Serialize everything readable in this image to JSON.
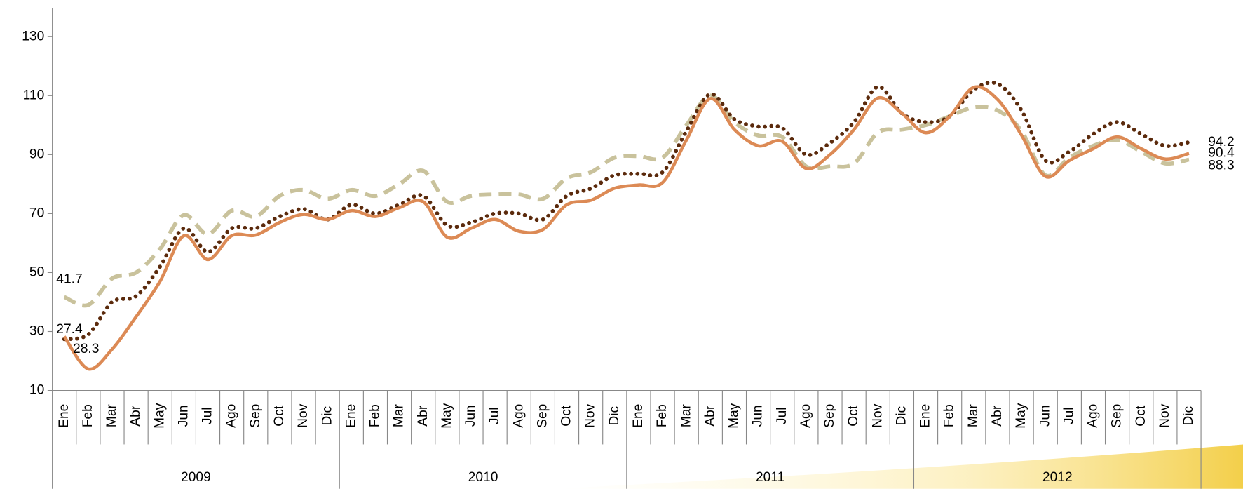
{
  "chart_data": {
    "type": "line",
    "categories": [
      "Ene",
      "Feb",
      "Mar",
      "Abr",
      "May",
      "Jun",
      "Jul",
      "Ago",
      "Sep",
      "Oct",
      "Nov",
      "Dic",
      "Ene",
      "Feb",
      "Mar",
      "Abr",
      "May",
      "Jun",
      "Jul",
      "Ago",
      "Sep",
      "Oct",
      "Nov",
      "Dic",
      "Ene",
      "Feb",
      "Mar",
      "Abr",
      "May",
      "Jun",
      "Jul",
      "Ago",
      "Sep",
      "Oct",
      "Nov",
      "Dic",
      "Ene",
      "Feb",
      "Mar",
      "Abr",
      "May",
      "Jun",
      "Jul",
      "Ago",
      "Sep",
      "Oct",
      "Nov",
      "Dic"
    ],
    "groups": [
      "2009",
      "2010",
      "2011",
      "2012"
    ],
    "series": [
      {
        "color": "#c9c29c",
        "label_color": "#808080",
        "style": "dashed",
        "values": [
          41.7,
          39,
          48,
          50,
          58,
          69.5,
          63,
          71,
          69,
          76,
          78,
          75,
          78,
          76,
          80,
          84.5,
          74,
          76,
          76.5,
          76.5,
          75,
          82,
          84,
          89,
          89.5,
          89,
          100,
          110,
          101,
          96.5,
          96,
          86,
          86,
          87,
          97.5,
          98.5,
          100,
          103,
          106,
          105,
          98,
          83,
          89,
          93,
          95,
          91,
          87,
          88.3
        ]
      },
      {
        "color": "#5b2a0c",
        "label_color": "#000000",
        "style": "dotted",
        "values": [
          27.4,
          29,
          40,
          42,
          52,
          65,
          57,
          65,
          65,
          69,
          71.5,
          68,
          73,
          70,
          73,
          76,
          66,
          67,
          70,
          70,
          68,
          76,
          78.5,
          83,
          83.5,
          84,
          98,
          110.5,
          102,
          99.5,
          99,
          90,
          94,
          101,
          113,
          104,
          101,
          103,
          112,
          114,
          105,
          88,
          91,
          97,
          101,
          97,
          93,
          94.2
        ]
      },
      {
        "color": "#dc8a55",
        "label_color": "#f0a050",
        "style": "solid",
        "values": [
          28.3,
          17.3,
          24,
          35,
          47,
          62.5,
          54.4,
          62.5,
          62.7,
          67,
          69.7,
          68,
          71,
          69,
          72,
          74,
          62,
          65,
          68,
          64,
          64.6,
          73,
          74.5,
          78.6,
          79.7,
          80.5,
          95,
          109,
          98.5,
          93,
          94.5,
          85.3,
          90,
          98.5,
          109.2,
          104,
          97.4,
          103,
          112.8,
          108.7,
          96.6,
          82.6,
          88,
          92,
          96,
          92,
          88.5,
          90.4
        ]
      }
    ],
    "ylim": [
      10,
      130
    ],
    "yticks": [
      10,
      30,
      50,
      70,
      90,
      110,
      130
    ],
    "grid": false
  }
}
